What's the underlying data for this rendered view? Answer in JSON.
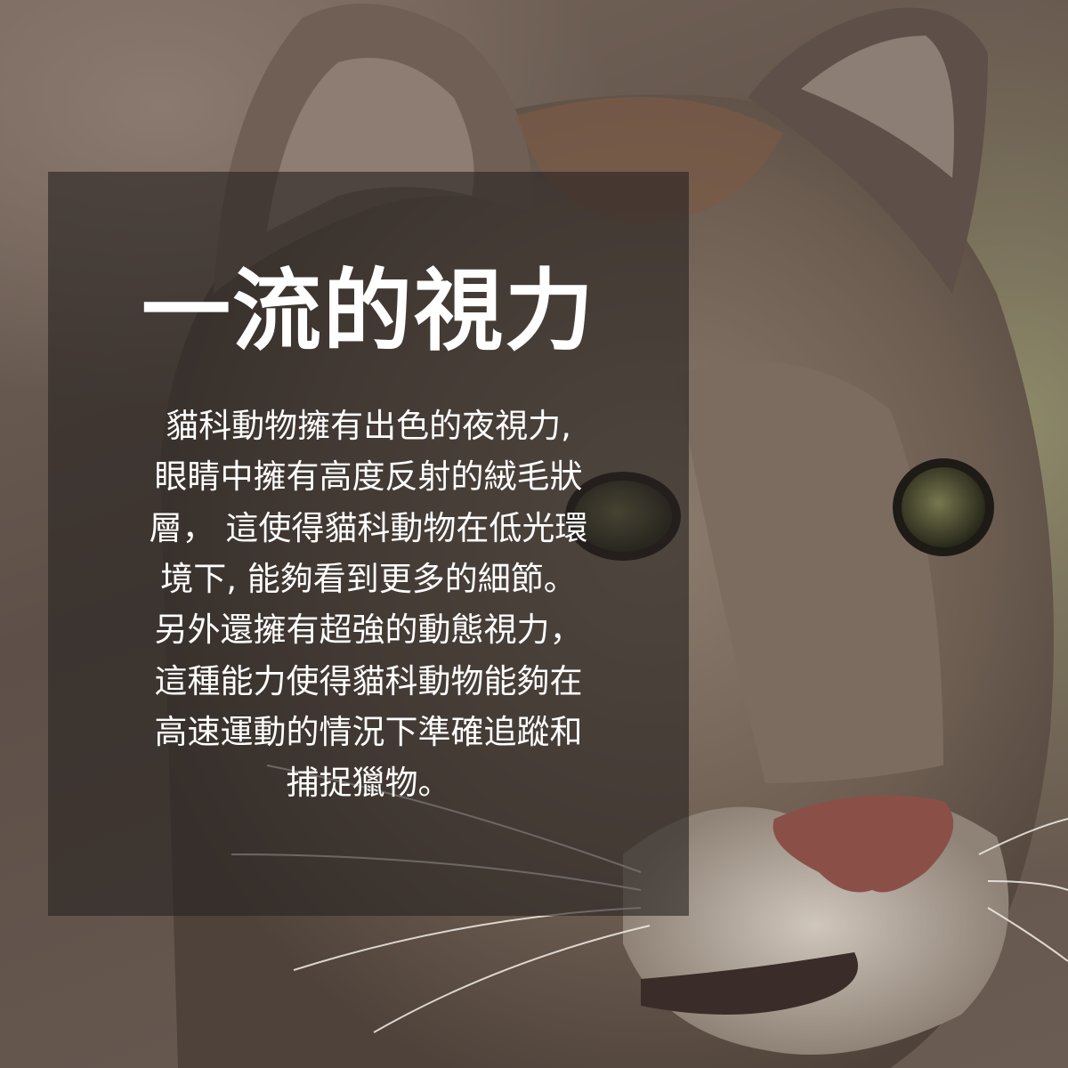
{
  "image": {
    "subject": "cougar-face-photo",
    "palette": {
      "fur_dark": "#4a3f38",
      "fur_mid": "#7a6a5e",
      "fur_light": "#a89888",
      "nose": "#8a5048",
      "eye": "#5a5a3a",
      "panel": "#282422"
    }
  },
  "card": {
    "title": "一流的視力",
    "lines": [
      "貓科動物擁有出色的夜視力,",
      "眼睛中擁有高度反射的絨毛狀",
      "層， 這使得貓科動物在低光環",
      "境下, 能夠看到更多的細節。",
      "另外還擁有超強的動態視力，",
      "這種能力使得貓科動物能夠在",
      "高速運動的情況下準確追蹤和",
      "捕捉獵物。"
    ]
  }
}
